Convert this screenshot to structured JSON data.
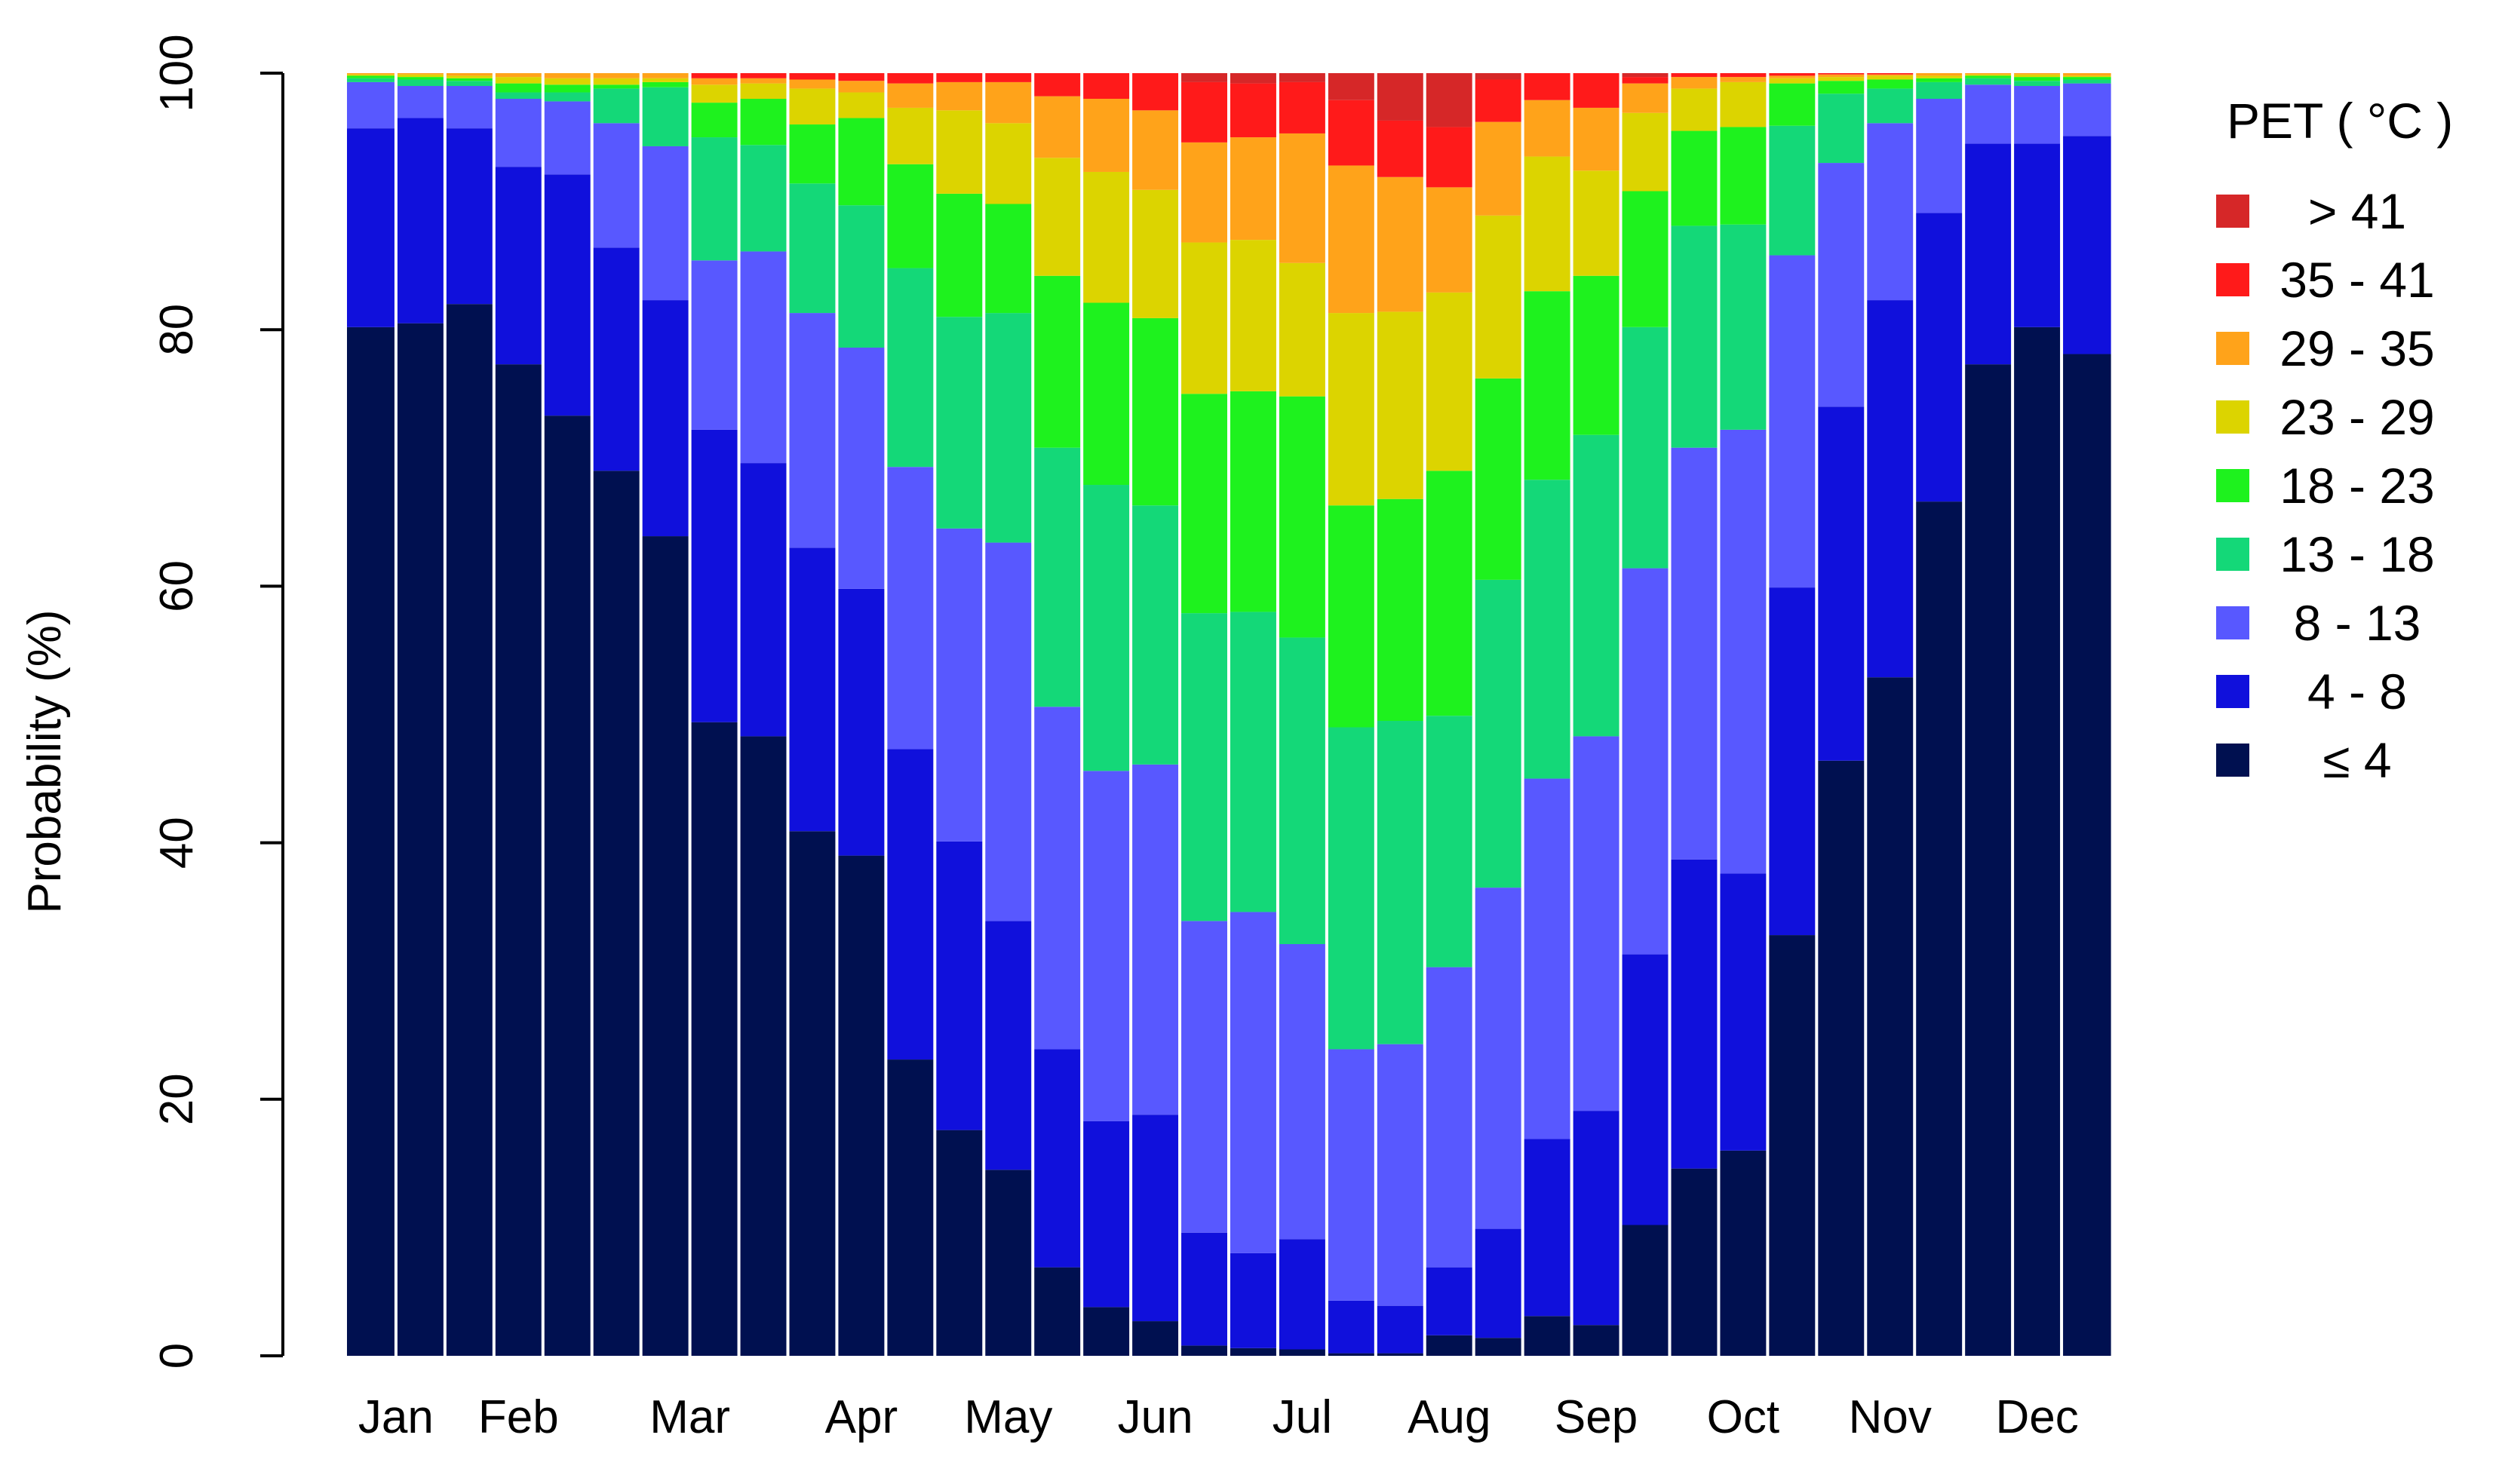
{
  "chart_data": {
    "type": "stacked-bar",
    "ylabel": "Probability (%)",
    "ylim": [
      0,
      100
    ],
    "yticks": [
      0,
      20,
      40,
      60,
      80,
      100
    ],
    "months": [
      "Jan",
      "Feb",
      "Mar",
      "Apr",
      "May",
      "Jun",
      "Jul",
      "Aug",
      "Sep",
      "Oct",
      "Nov",
      "Dec"
    ],
    "legend": {
      "title": "PET ( °C )",
      "placement": "right",
      "entries": [
        {
          "label": "> 41",
          "color": "#d62728"
        },
        {
          "label": "35 - 41",
          "color": "#ff1a1a"
        },
        {
          "label": "29 - 35",
          "color": "#ffa31a"
        },
        {
          "label": "23 - 29",
          "color": "#dcd400"
        },
        {
          "label": "18 - 23",
          "color": "#1ef21e"
        },
        {
          "label": "13 - 18",
          "color": "#14d878"
        },
        {
          "label": "8 - 13",
          "color": "#5858ff"
        },
        {
          "label": "4 - 8",
          "color": "#1010dc"
        },
        {
          "label": "≤ 4",
          "color": "#001050"
        }
      ]
    },
    "series_order_bottom_to_top": [
      "≤ 4",
      "4 - 8",
      "8 - 13",
      "13 - 18",
      "18 - 23",
      "23 - 29",
      "29 - 35",
      "35 - 41",
      "> 41"
    ],
    "bars": [
      {
        "month": "Jan",
        "cum": [
          80.2,
          95.7,
          99.3,
          99.6,
          99.8,
          99.9,
          100,
          100,
          100
        ]
      },
      {
        "month": "Jan",
        "cum": [
          80.5,
          96.5,
          99.0,
          99.5,
          99.7,
          99.9,
          100,
          100,
          100
        ]
      },
      {
        "month": "Feb",
        "cum": [
          82.0,
          95.7,
          99.0,
          99.4,
          99.6,
          99.8,
          100,
          100,
          100
        ]
      },
      {
        "month": "Feb",
        "cum": [
          77.3,
          92.7,
          98.0,
          98.5,
          99.2,
          99.7,
          100,
          100,
          100
        ]
      },
      {
        "month": "Feb",
        "cum": [
          73.3,
          92.1,
          97.8,
          98.5,
          99.1,
          99.6,
          100,
          100,
          100
        ]
      },
      {
        "month": "Mar",
        "cum": [
          69.0,
          86.4,
          96.1,
          98.8,
          99.1,
          99.6,
          100,
          100,
          100
        ]
      },
      {
        "month": "Mar",
        "cum": [
          63.9,
          82.3,
          94.3,
          98.9,
          99.3,
          99.6,
          100,
          100,
          100
        ]
      },
      {
        "month": "Mar",
        "cum": [
          49.4,
          72.2,
          85.4,
          95.0,
          97.7,
          99.1,
          99.6,
          100,
          100
        ]
      },
      {
        "month": "Mar",
        "cum": [
          48.3,
          69.6,
          86.1,
          94.4,
          98.0,
          99.2,
          99.6,
          100,
          100
        ]
      },
      {
        "month": "Apr",
        "cum": [
          40.9,
          63.0,
          81.3,
          91.4,
          96.0,
          98.8,
          99.5,
          100,
          100
        ]
      },
      {
        "month": "Apr",
        "cum": [
          39.0,
          59.8,
          78.6,
          89.7,
          96.5,
          98.5,
          99.4,
          100,
          100
        ]
      },
      {
        "month": "Apr",
        "cum": [
          23.1,
          47.3,
          69.3,
          84.8,
          92.9,
          97.3,
          99.2,
          100,
          100
        ]
      },
      {
        "month": "May",
        "cum": [
          17.6,
          40.1,
          64.5,
          81.0,
          90.6,
          97.1,
          99.3,
          100,
          100
        ]
      },
      {
        "month": "May",
        "cum": [
          14.5,
          33.9,
          63.4,
          81.3,
          89.8,
          96.1,
          99.3,
          100,
          100
        ]
      },
      {
        "month": "May",
        "cum": [
          6.9,
          23.9,
          50.6,
          70.8,
          84.2,
          93.4,
          98.2,
          100,
          100
        ]
      },
      {
        "month": "Jun",
        "cum": [
          3.8,
          18.3,
          45.6,
          67.9,
          82.1,
          92.3,
          98.0,
          100,
          100
        ]
      },
      {
        "month": "Jun",
        "cum": [
          2.7,
          18.8,
          46.1,
          66.3,
          80.9,
          90.9,
          97.1,
          100,
          100
        ]
      },
      {
        "month": "Jun",
        "cum": [
          0.8,
          9.6,
          33.9,
          57.9,
          75.0,
          86.8,
          94.6,
          99.3,
          100
        ]
      },
      {
        "month": "Jul",
        "cum": [
          0.6,
          8.0,
          34.6,
          58.0,
          75.2,
          87.0,
          95.0,
          99.2,
          100
        ]
      },
      {
        "month": "Jul",
        "cum": [
          0.5,
          9.1,
          32.1,
          56.0,
          74.8,
          85.2,
          95.3,
          99.3,
          100
        ]
      },
      {
        "month": "Jul",
        "cum": [
          0.2,
          4.3,
          23.9,
          49.0,
          66.3,
          81.3,
          92.8,
          97.9,
          100
        ]
      },
      {
        "month": "Aug",
        "cum": [
          0.2,
          3.9,
          24.3,
          49.5,
          66.8,
          81.4,
          91.9,
          96.3,
          100
        ]
      },
      {
        "month": "Aug",
        "cum": [
          1.6,
          6.9,
          30.3,
          49.9,
          69.0,
          82.9,
          91.1,
          95.8,
          100
        ]
      },
      {
        "month": "Aug",
        "cum": [
          1.4,
          9.9,
          36.5,
          60.5,
          76.2,
          88.9,
          96.2,
          99.5,
          100
        ]
      },
      {
        "month": "Sep",
        "cum": [
          3.1,
          16.9,
          45.0,
          68.3,
          83.0,
          93.5,
          97.9,
          100,
          100
        ]
      },
      {
        "month": "Sep",
        "cum": [
          2.4,
          19.1,
          48.3,
          71.8,
          84.2,
          92.4,
          97.3,
          100,
          100
        ]
      },
      {
        "month": "Sep",
        "cum": [
          10.2,
          31.3,
          61.4,
          80.2,
          90.8,
          96.9,
          99.2,
          99.7,
          100
        ]
      },
      {
        "month": "Oct",
        "cum": [
          14.6,
          38.7,
          70.8,
          88.1,
          95.5,
          98.8,
          99.7,
          100,
          100
        ]
      },
      {
        "month": "Oct",
        "cum": [
          16.0,
          37.6,
          72.2,
          88.2,
          95.8,
          99.3,
          99.7,
          100,
          100
        ]
      },
      {
        "month": "Oct",
        "cum": [
          32.8,
          59.9,
          85.8,
          95.9,
          99.2,
          99.6,
          99.8,
          100,
          100
        ]
      },
      {
        "month": "Nov",
        "cum": [
          46.4,
          74.0,
          93.0,
          98.4,
          99.4,
          99.7,
          99.9,
          100,
          100
        ]
      },
      {
        "month": "Nov",
        "cum": [
          52.9,
          82.3,
          96.1,
          98.8,
          99.5,
          99.8,
          99.9,
          100,
          100
        ]
      },
      {
        "month": "Nov",
        "cum": [
          66.6,
          89.1,
          98.0,
          99.3,
          99.6,
          99.8,
          100,
          100,
          100
        ]
      },
      {
        "month": "Dec",
        "cum": [
          77.3,
          94.5,
          99.1,
          99.6,
          99.8,
          99.9,
          100,
          100,
          100
        ]
      },
      {
        "month": "Dec",
        "cum": [
          80.2,
          94.5,
          99.0,
          99.4,
          99.7,
          99.9,
          100,
          100,
          100
        ]
      },
      {
        "month": "Dec",
        "cum": [
          78.1,
          95.1,
          99.2,
          99.5,
          99.7,
          99.8,
          100,
          100,
          100
        ]
      }
    ]
  }
}
